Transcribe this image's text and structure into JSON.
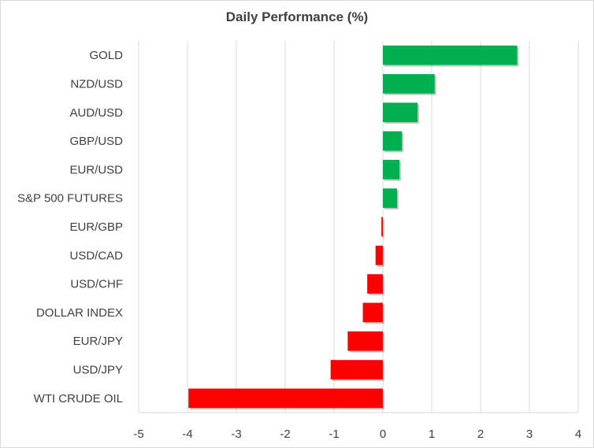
{
  "chart_data": {
    "type": "bar",
    "orientation": "horizontal",
    "title": "Daily Performance (%)",
    "xlabel": "",
    "ylabel": "",
    "xlim": [
      -5,
      4
    ],
    "xticks": [
      -5,
      -4,
      -3,
      -2,
      -1,
      0,
      1,
      2,
      3,
      4
    ],
    "grid": true,
    "legend": "none",
    "positive_color": "#00b050",
    "negative_color": "#ff0000",
    "categories": [
      "GOLD",
      "NZD/USD",
      "AUD/USD",
      "GBP/USD",
      "EUR/USD",
      "S&P 500 FUTURES",
      "EUR/GBP",
      "USD/CAD",
      "USD/CHF",
      "DOLLAR INDEX",
      "EUR/JPY",
      "USD/JPY",
      "WTI CRUDE OIL"
    ],
    "values": [
      2.75,
      1.06,
      0.71,
      0.39,
      0.34,
      0.29,
      -0.03,
      -0.15,
      -0.32,
      -0.41,
      -0.72,
      -1.07,
      -3.98
    ]
  }
}
